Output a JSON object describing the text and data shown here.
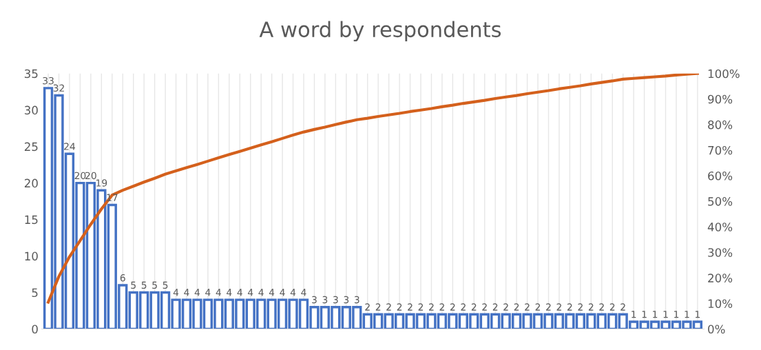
{
  "chart_data": {
    "type": "bar",
    "title": "A word by respondents",
    "categories": [
      null,
      null,
      null,
      null,
      null,
      null,
      null,
      null,
      null,
      null,
      null,
      null,
      null,
      null,
      null,
      null,
      null,
      null,
      null,
      null,
      null,
      null,
      null,
      null,
      null,
      null,
      null,
      null,
      null,
      null,
      null,
      null,
      null,
      null,
      null,
      null,
      null,
      null,
      null,
      null,
      null,
      null,
      null,
      null,
      null,
      null,
      null,
      null,
      null,
      null,
      null,
      null,
      null,
      null,
      null,
      null,
      null,
      null,
      null,
      null,
      null,
      null
    ],
    "series": [
      {
        "type": "bar",
        "color": "#4472c4",
        "values": [
          33,
          32,
          24,
          20,
          20,
          19,
          17,
          6,
          5,
          5,
          5,
          5,
          4,
          4,
          4,
          4,
          4,
          4,
          4,
          4,
          4,
          4,
          4,
          4,
          4,
          3,
          3,
          3,
          3,
          3,
          2,
          2,
          2,
          2,
          2,
          2,
          2,
          2,
          2,
          2,
          2,
          2,
          2,
          2,
          2,
          2,
          2,
          2,
          2,
          2,
          2,
          2,
          2,
          2,
          2,
          1,
          1,
          1,
          1,
          1,
          1,
          1
        ],
        "value_labels": [
          "33",
          "32",
          "24",
          "20",
          "20",
          "19",
          "17",
          "6",
          "5",
          "5",
          "5",
          "5",
          "4",
          "4",
          "4",
          "4",
          "4",
          "4",
          "4",
          "4",
          "4",
          "4",
          "4",
          "4",
          "4",
          "3",
          "3",
          "3",
          "3",
          "3",
          "2",
          "2",
          "2",
          "2",
          "2",
          "2",
          "2",
          "2",
          "2",
          "2",
          "2",
          "2",
          "2",
          "2",
          "2",
          "2",
          "2",
          "2",
          "2",
          "2",
          "2",
          "2",
          "2",
          "2",
          "2",
          "1",
          "1",
          "1",
          "1",
          "1",
          "1",
          "1"
        ]
      },
      {
        "type": "line",
        "axis": "y2",
        "color": "#d4601c",
        "values": [
          10.5,
          20.6,
          28.3,
          34.6,
          41.0,
          47.0,
          52.4,
          54.3,
          55.9,
          57.5,
          59.0,
          60.6,
          61.9,
          63.2,
          64.4,
          65.7,
          67.0,
          68.3,
          69.5,
          70.8,
          72.1,
          73.3,
          74.6,
          75.9,
          77.1,
          78.1,
          79.0,
          80.0,
          81.0,
          81.9,
          82.5,
          83.2,
          83.8,
          84.4,
          85.1,
          85.7,
          86.3,
          87.0,
          87.6,
          88.3,
          88.9,
          89.5,
          90.2,
          90.8,
          91.4,
          92.1,
          92.7,
          93.3,
          94.0,
          94.6,
          95.2,
          95.9,
          96.5,
          97.1,
          97.8,
          98.1,
          98.4,
          98.7,
          99.0,
          99.4,
          99.7,
          100.0
        ]
      }
    ],
    "ylim": [
      0,
      35
    ],
    "yticks": [
      0,
      5,
      10,
      15,
      20,
      25,
      30,
      35
    ],
    "y2lim": [
      0,
      100
    ],
    "y2ticks": [
      {
        "value": 0,
        "label": "0%"
      },
      {
        "value": 10,
        "label": "10%"
      },
      {
        "value": 20,
        "label": "20%"
      },
      {
        "value": 30,
        "label": "30%"
      },
      {
        "value": 40,
        "label": "40%"
      },
      {
        "value": 50,
        "label": "50%"
      },
      {
        "value": 60,
        "label": "60%"
      },
      {
        "value": 70,
        "label": "70%"
      },
      {
        "value": 80,
        "label": "80%"
      },
      {
        "value": 90,
        "label": "90%"
      },
      {
        "value": 100,
        "label": "100%"
      }
    ],
    "grid": "x"
  }
}
